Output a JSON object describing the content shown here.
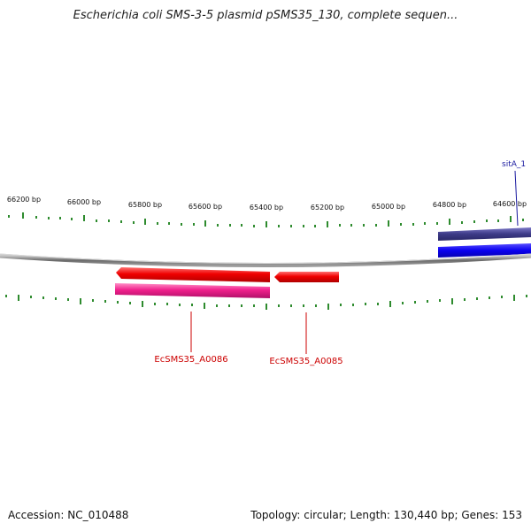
{
  "title": "Escherichia coli SMS-3-5 plasmid pSMS35_130, complete sequen...",
  "ruler_labels": [
    "66200 bp",
    "66000 bp",
    "65800 bp",
    "65600 bp",
    "65400 bp",
    "65200 bp",
    "65000 bp",
    "64800 bp",
    "64600 bp"
  ],
  "genes": {
    "sitA": "sitA_1",
    "a0086": "EcSMS35_A0086",
    "a0085": "EcSMS35_A0085"
  },
  "footer": {
    "accession": "Accession: NC_010488",
    "summary": "Topology: circular; Length: 130,440 bp; Genes: 153"
  },
  "colors": {
    "forward_gene": "#0a00f0",
    "forward_gene_dark": "#3c3a86",
    "reverse_gene": "#f00000",
    "reverse_gene_pink": "#f0208c",
    "backbone": "#7a7a7a",
    "tick": "#2e8b2e",
    "label_blue": "#1a1aa0",
    "label_red": "#cc0000"
  },
  "icons": [
    "forward-gene-arrow",
    "reverse-gene-arrow"
  ]
}
